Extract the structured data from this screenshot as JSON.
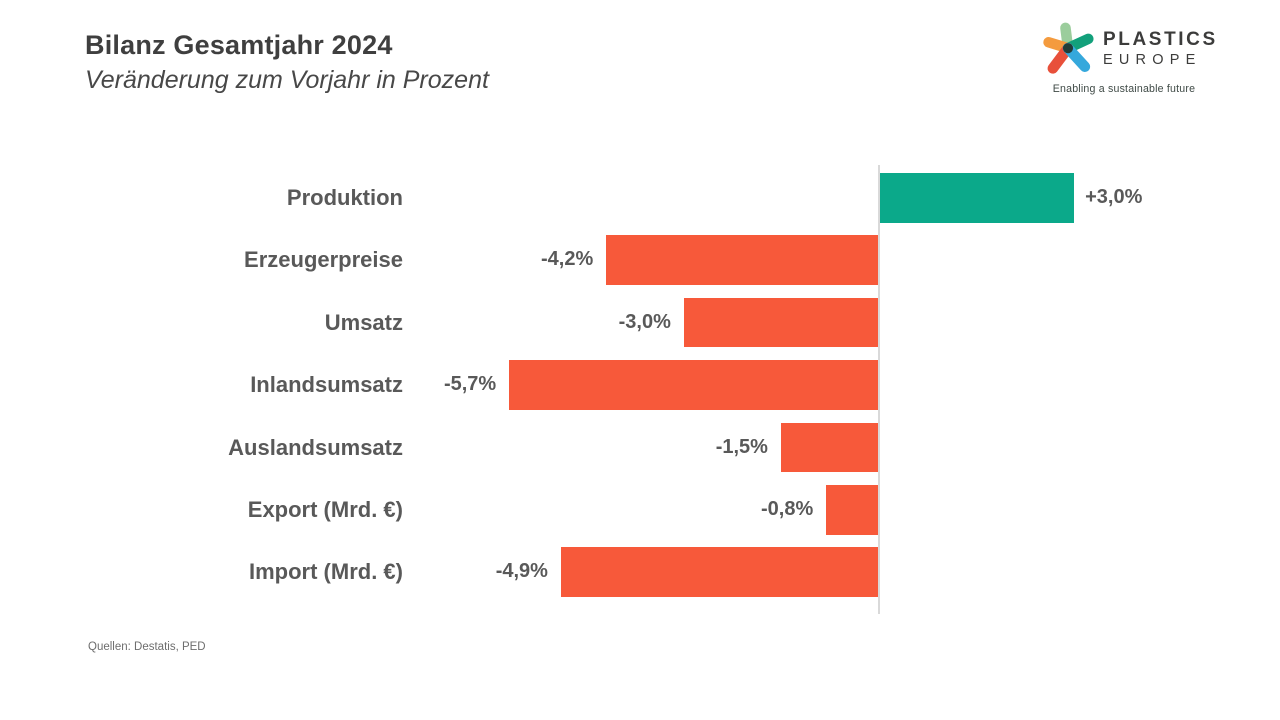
{
  "header": {
    "title": "Bilanz Gesamtjahr 2024",
    "subtitle": "Veränderung zum Vorjahr in Prozent"
  },
  "logo": {
    "name_line1": "PLASTICS",
    "name_line2": "EUROPE",
    "tagline": "Enabling a sustainable future",
    "star_colors": {
      "top": "#9bcd9c",
      "upper_left": "#f49b3e",
      "upper_right": "#12a07b",
      "lower_left": "#e8503a",
      "lower_right": "#35a8dc",
      "center": "#223c37"
    }
  },
  "footer": {
    "source": "Quellen: Destatis, PED"
  },
  "chart_data": {
    "type": "bar",
    "orientation": "horizontal",
    "title": "Bilanz Gesamtjahr 2024",
    "subtitle": "Veränderung zum Vorjahr in Prozent",
    "unit": "percent change vs previous year",
    "categories": [
      "Produktion",
      "Erzeugerpreise",
      "Umsatz",
      "Inlandsumsatz",
      "Auslandsumsatz",
      "Export (Mrd. €)",
      "Import (Mrd. €)"
    ],
    "values": [
      3.0,
      -4.2,
      -3.0,
      -5.7,
      -1.5,
      -0.8,
      -4.9
    ],
    "value_labels": [
      "+3,0%",
      "-4,2%",
      "-3,0%",
      "-5,7%",
      "-1,5%",
      "-0,8%",
      "-4,9%"
    ],
    "xlim": [
      -6.5,
      3.5
    ],
    "grid": false,
    "legend": false,
    "positive_color": "#0ba98a",
    "negative_color": "#f7593a",
    "axis_color": "#d9d9d9",
    "label_color": "#595959"
  }
}
